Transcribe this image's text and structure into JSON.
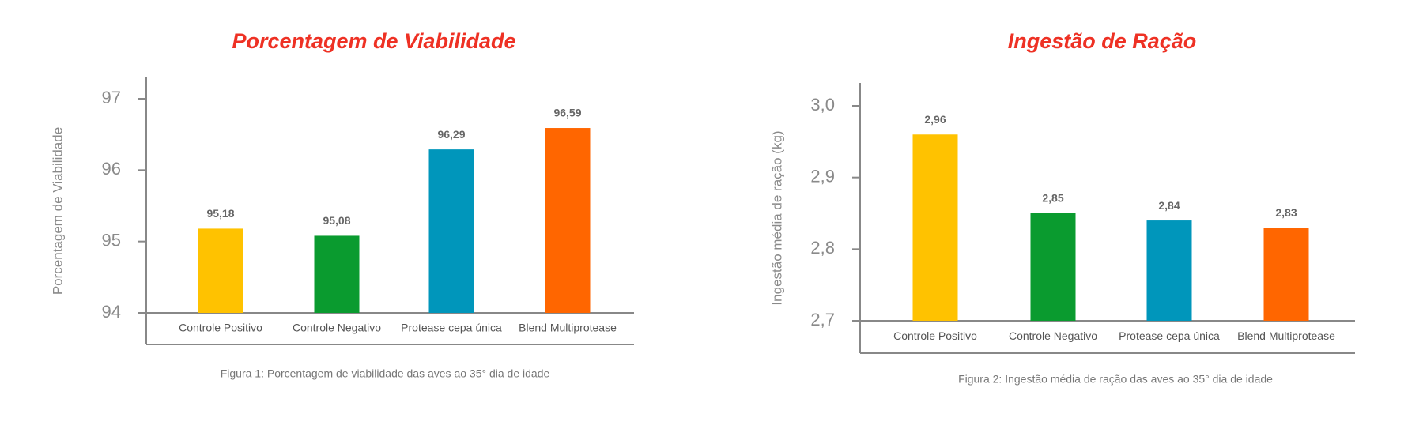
{
  "chart_data": [
    {
      "type": "bar",
      "title": "Porcentagem de Viabilidade",
      "y_label": "Porcentagem de Viabilidade",
      "categories": [
        "Controle Positivo",
        "Controle Negativo",
        "Protease cepa única",
        "Blend Multiprotease"
      ],
      "values": [
        95.18,
        95.08,
        96.29,
        96.59
      ],
      "value_labels": [
        "95,18",
        "95,08",
        "96,29",
        "96,59"
      ],
      "colors": [
        "#FFC200",
        "#0A9B2F",
        "#0096BB",
        "#FF6600"
      ],
      "ylim": [
        94,
        97
      ],
      "yticks": [
        94,
        95,
        96,
        97
      ],
      "caption": "Figura 1: Porcentagem de viabilidade das aves ao 35° dia de idade"
    },
    {
      "type": "bar",
      "title": "Ingestão de Ração",
      "y_label": "Ingestão média de ração (kg)",
      "categories": [
        "Controle Positivo",
        "Controle Negativo",
        "Protease cepa única",
        "Blend Multiprotease"
      ],
      "values": [
        2.96,
        2.85,
        2.84,
        2.83
      ],
      "value_labels": [
        "2,96",
        "2,85",
        "2,84",
        "2,83"
      ],
      "colors": [
        "#FFC200",
        "#0A9B2F",
        "#0096BB",
        "#FF6600"
      ],
      "ylim": [
        2.7,
        3.0
      ],
      "yticks": [
        {
          "value": 2.7,
          "label": "2,7"
        },
        {
          "value": 2.8,
          "label": "2,8"
        },
        {
          "value": 2.9,
          "label": "2,9"
        },
        {
          "value": 3.0,
          "label": "3,0"
        }
      ],
      "caption": "Figura 2: Ingestão média de ração das aves ao 35° dia de idade"
    }
  ]
}
